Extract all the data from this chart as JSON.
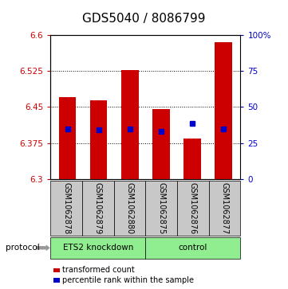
{
  "title": "GDS5040 / 8086799",
  "samples": [
    "GSM1062878",
    "GSM1062879",
    "GSM1062880",
    "GSM1062875",
    "GSM1062876",
    "GSM1062877"
  ],
  "bar_tops": [
    6.47,
    6.463,
    6.526,
    6.445,
    6.385,
    6.585
  ],
  "bar_bottom": 6.3,
  "percentile_values": [
    6.405,
    6.403,
    6.405,
    6.4,
    6.415,
    6.405
  ],
  "ylim_left": [
    6.3,
    6.6
  ],
  "ylim_right": [
    0,
    100
  ],
  "yticks_left": [
    6.3,
    6.375,
    6.45,
    6.525,
    6.6
  ],
  "yticks_right": [
    0,
    25,
    50,
    75,
    100
  ],
  "ytick_labels_right": [
    "0",
    "25",
    "50",
    "75",
    "100%"
  ],
  "bar_color": "#CC0000",
  "blue_marker_color": "#0000CC",
  "title_fontsize": 11,
  "tick_fontsize": 7.5,
  "sample_label_fontsize": 7,
  "ets2_label": "ETS2 knockdown",
  "control_label": "control",
  "protocol_label": "protocol",
  "legend_red_label": "transformed count",
  "legend_blue_label": "percentile rank within the sample",
  "group_split": 3,
  "n_samples": 6,
  "group_color": "#90EE90",
  "label_bg_color": "#C8C8C8"
}
